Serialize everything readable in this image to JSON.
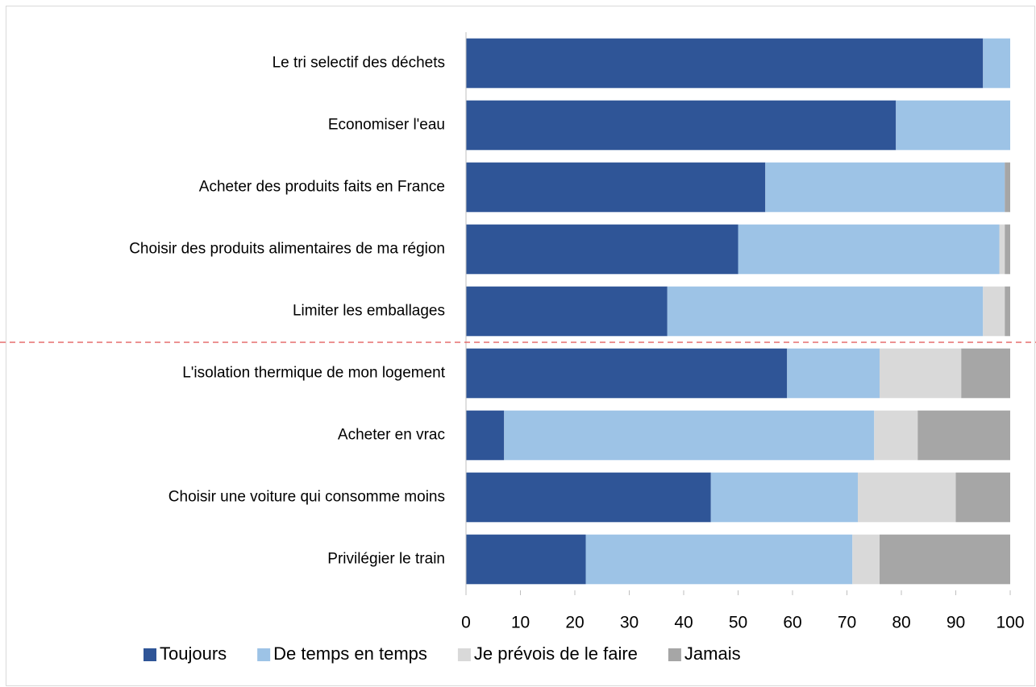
{
  "chart_data": {
    "type": "stacked-bar-horizontal",
    "categories": [
      "Le tri selectif des déchets",
      "Economiser l'eau",
      "Acheter des produits faits en France",
      "Choisir des produits alimentaires de ma région",
      "Limiter les emballages",
      "L'isolation thermique de mon logement",
      "Acheter en vrac",
      "Choisir une voiture qui consomme moins",
      "Privilégier le train"
    ],
    "series": [
      {
        "name": "Toujours",
        "color": "#2f5597",
        "values": [
          95,
          79,
          55,
          50,
          37,
          59,
          7,
          45,
          22
        ]
      },
      {
        "name": "De temps en temps",
        "color": "#9dc3e6",
        "values": [
          5,
          21,
          44,
          48,
          58,
          17,
          68,
          27,
          49
        ]
      },
      {
        "name": "Je prévois de le faire",
        "color": "#d9d9d9",
        "values": [
          0,
          0,
          0,
          1,
          4,
          15,
          8,
          18,
          5
        ]
      },
      {
        "name": "Jamais",
        "color": "#a6a6a6",
        "values": [
          0,
          0,
          1,
          1,
          1,
          9,
          17,
          10,
          24
        ]
      }
    ],
    "xlim": [
      0,
      100
    ],
    "xticks": [
      0,
      10,
      20,
      30,
      40,
      50,
      60,
      70,
      80,
      90,
      100
    ],
    "legend": "bottom"
  }
}
